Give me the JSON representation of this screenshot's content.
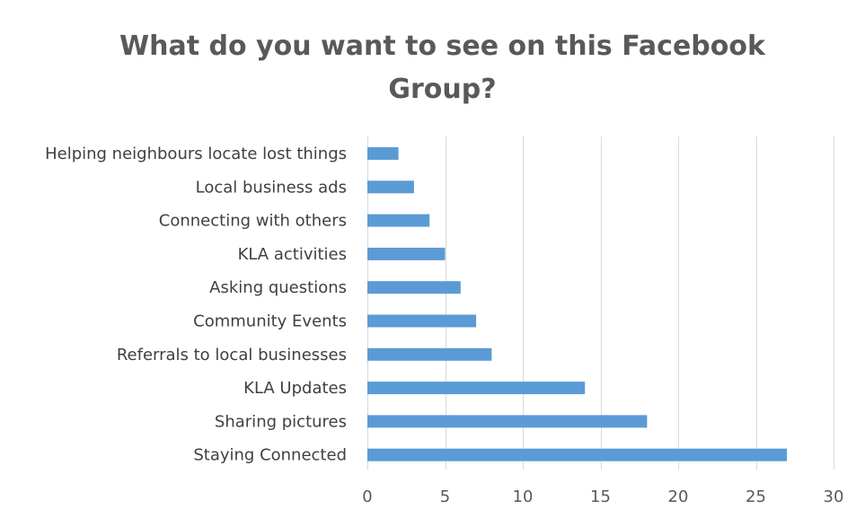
{
  "chart_data": {
    "type": "bar",
    "orientation": "horizontal",
    "title": "What do you want to see on this Facebook Group?",
    "title_lines": [
      "What do you want to see on this Facebook",
      "Group?"
    ],
    "xlabel": "",
    "ylabel": "",
    "categories": [
      "Helping neighbours locate lost things",
      "Local business ads",
      "Connecting with others",
      "KLA activities",
      "Asking questions",
      "Community Events",
      "Referrals to local businesses",
      "KLA Updates",
      "Sharing pictures",
      "Staying Connected"
    ],
    "values": [
      2,
      3,
      4,
      5,
      6,
      7,
      8,
      14,
      18,
      27
    ],
    "xlim": [
      0,
      30
    ],
    "xticks": [
      0,
      5,
      10,
      15,
      20,
      25,
      30
    ],
    "grid": "vertical",
    "legend": "none",
    "bar_color": "#5b9bd5",
    "grid_color": "#d9d9d9"
  }
}
